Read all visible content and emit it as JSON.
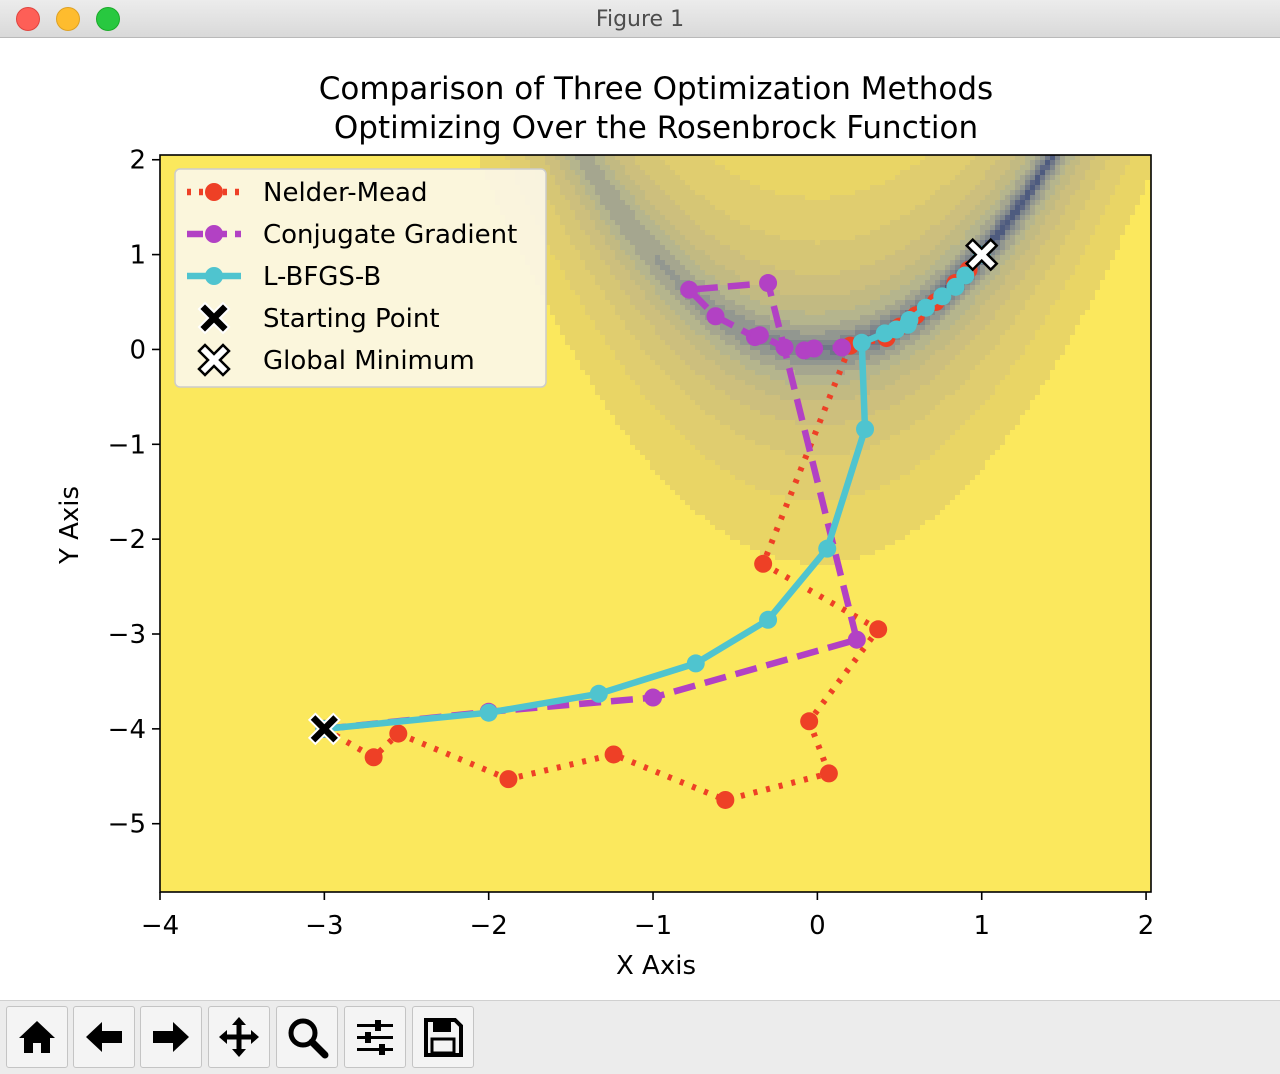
{
  "window": {
    "title": "Figure 1"
  },
  "toolbar": {
    "buttons": [
      {
        "name": "home-button",
        "icon": "home-icon"
      },
      {
        "name": "back-button",
        "icon": "arrow-left-icon"
      },
      {
        "name": "forward-button",
        "icon": "arrow-right-icon"
      },
      {
        "name": "pan-button",
        "icon": "move-icon"
      },
      {
        "name": "zoom-button",
        "icon": "magnifier-icon"
      },
      {
        "name": "configure-subplots-button",
        "icon": "sliders-icon"
      },
      {
        "name": "save-button",
        "icon": "floppy-disk-icon"
      }
    ]
  },
  "chart_data": {
    "type": "line",
    "title": [
      "Comparison of Three Optimization Methods",
      "Optimizing Over the Rosenbrock Function"
    ],
    "xlabel": "X Axis",
    "ylabel": "Y Axis",
    "xlim": [
      -4,
      2.03
    ],
    "ylim": [
      -5.72,
      2.05
    ],
    "xticks": [
      -4,
      -3,
      -2,
      -1,
      0,
      1,
      2
    ],
    "yticks": [
      2,
      1,
      0,
      -1,
      -2,
      -3,
      -4,
      -5
    ],
    "grid": false,
    "legend_position": "top-left",
    "background": "filled contour of the Rosenbrock function",
    "series": [
      {
        "name": "Nelder-Mead",
        "color": "#ee4026",
        "style": "dotted",
        "marker": "circle",
        "x": [
          -3,
          -2.7,
          -2.55,
          -1.88,
          -1.24,
          -0.56,
          0.07,
          -0.05,
          0.37,
          -0.33,
          0.2,
          0.42,
          0.5,
          0.6,
          0.72,
          0.84,
          0.92,
          1.0
        ],
        "y": [
          -4,
          -4.3,
          -4.05,
          -4.53,
          -4.27,
          -4.75,
          -4.47,
          -3.92,
          -2.95,
          -2.26,
          0.04,
          0.12,
          0.24,
          0.36,
          0.5,
          0.7,
          0.84,
          1.0
        ]
      },
      {
        "name": "Conjugate Gradient",
        "color": "#b241c4",
        "style": "dashed",
        "marker": "circle",
        "x": [
          -3,
          -2.0,
          -1.0,
          0.24,
          -0.3,
          -0.78,
          -0.62,
          -0.38,
          -0.35,
          -0.2,
          -0.08,
          -0.02,
          0.15
        ],
        "y": [
          -4,
          -3.82,
          -3.67,
          -3.06,
          0.7,
          0.63,
          0.35,
          0.13,
          0.15,
          0.02,
          -0.01,
          0.01,
          0.02
        ]
      },
      {
        "name": "L-BFGS-B",
        "color": "#4fc4cf",
        "style": "solid",
        "marker": "circle",
        "x": [
          -3,
          -2.0,
          -1.33,
          -0.74,
          -0.3,
          0.06,
          0.29,
          0.27,
          0.41,
          0.48,
          0.55,
          0.56,
          0.66,
          0.76,
          0.84,
          0.9,
          1.0
        ],
        "y": [
          -4,
          -3.83,
          -3.63,
          -3.31,
          -2.85,
          -2.1,
          -0.84,
          0.07,
          0.17,
          0.21,
          0.26,
          0.31,
          0.44,
          0.56,
          0.66,
          0.78,
          1.0
        ]
      },
      {
        "name": "Starting Point",
        "color": "#000000",
        "style": "none",
        "marker": "x-filled",
        "x": [
          -3
        ],
        "y": [
          -4
        ]
      },
      {
        "name": "Global Minimum",
        "color": "#ffffff",
        "style": "none",
        "marker": "x-filled-outlined",
        "x": [
          1
        ],
        "y": [
          1
        ]
      }
    ]
  }
}
